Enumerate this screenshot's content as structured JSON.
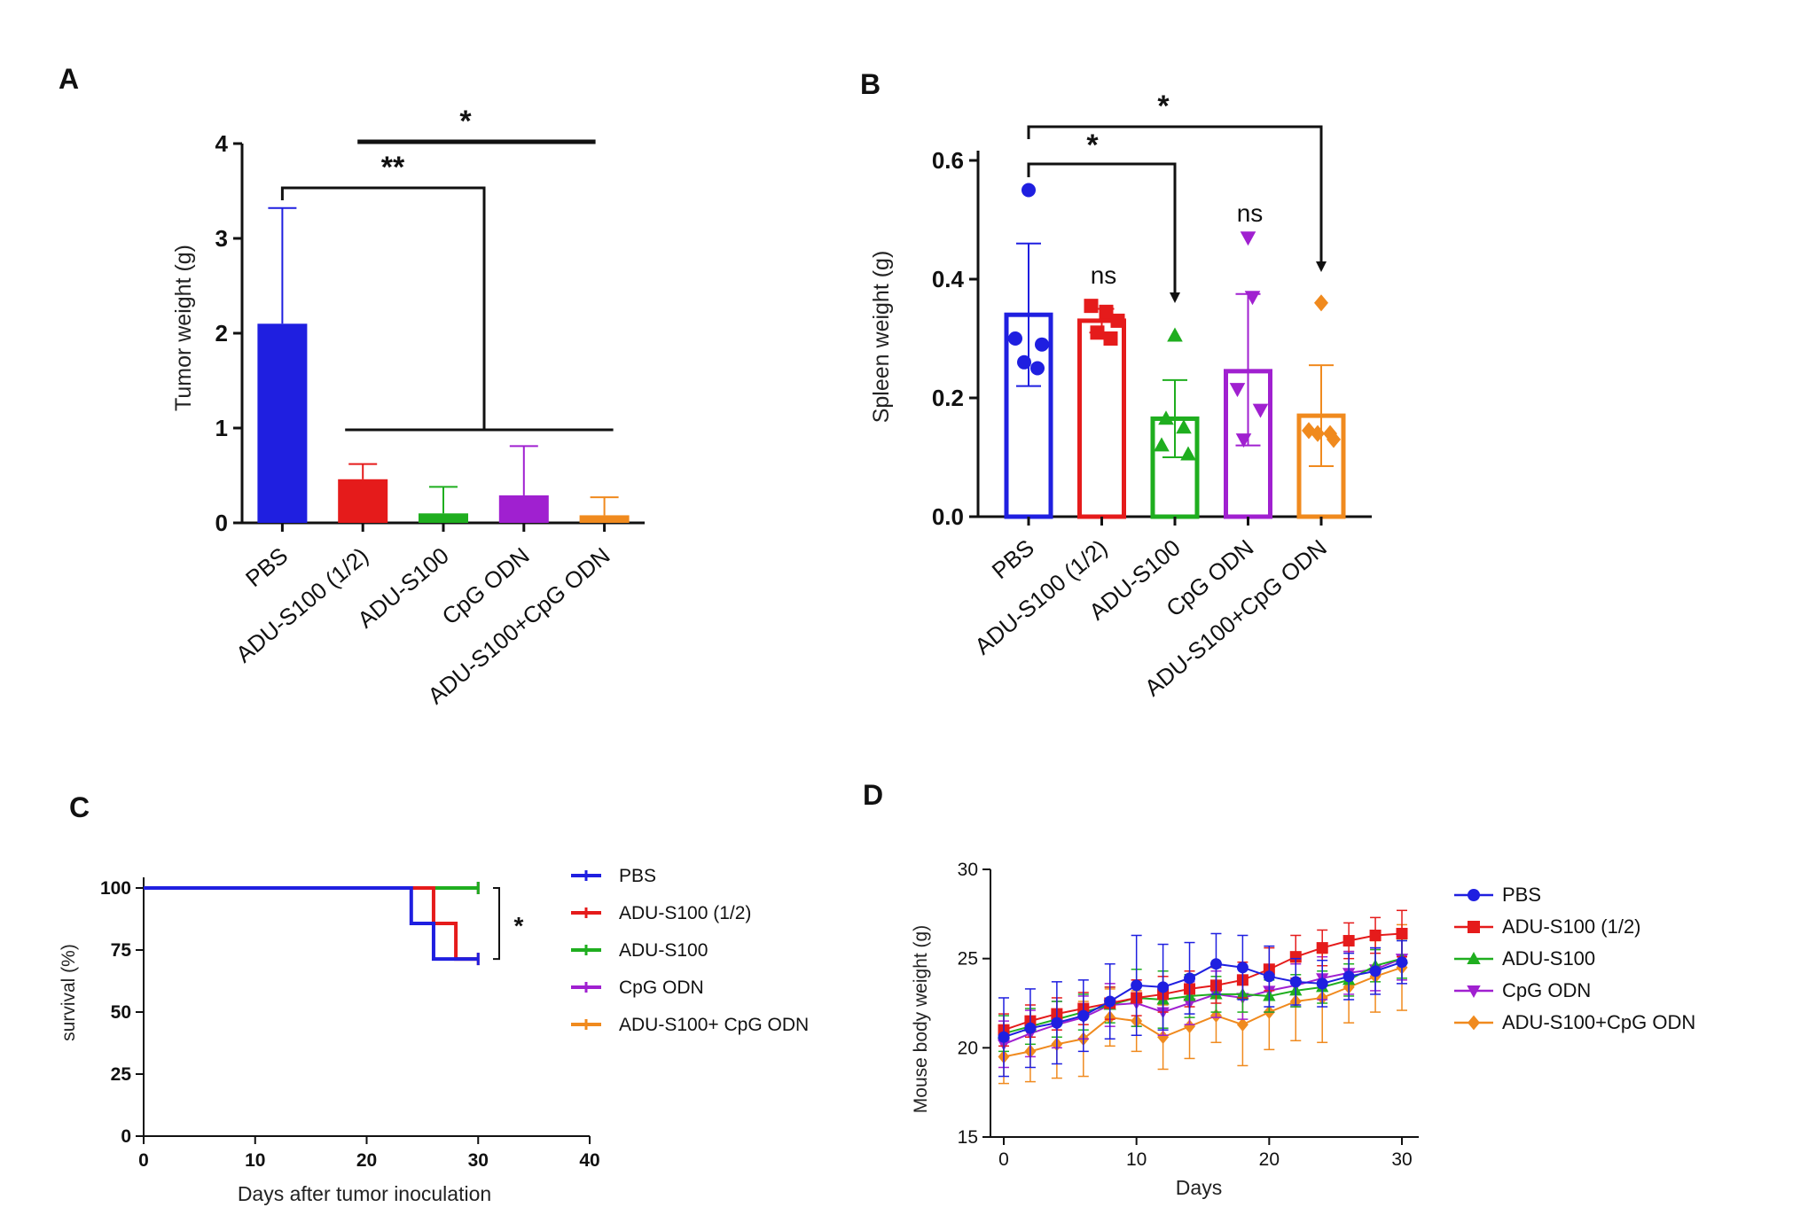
{
  "colors": {
    "PBS": "#1f1fe0",
    "ADU-S100 (1/2)": "#e51b1b",
    "ADU-S100": "#1fae1f",
    "CpG ODN": "#a020d0",
    "ADU-S100+CpG ODN": "#f08a1e"
  },
  "chart_data": [
    {
      "panel": "A",
      "type": "bar",
      "ylabel": "Tumor weight (g)",
      "ylim": [
        0,
        4
      ],
      "yticks": [
        "0",
        "1",
        "2",
        "3",
        "4"
      ],
      "categories": [
        "PBS",
        "ADU-S100 (1/2)",
        "ADU-S100",
        "CpG ODN",
        "ADU-S100+CpG ODN"
      ],
      "values": [
        2.1,
        0.46,
        0.1,
        0.29,
        0.08
      ],
      "error_upper": [
        3.32,
        0.62,
        0.38,
        0.81,
        0.27
      ],
      "annotations": [
        {
          "label": "*",
          "from": "ADU-S100 (1/2)",
          "to": "ADU-S100+CpG ODN"
        },
        {
          "label": "**",
          "from": "PBS",
          "to": "ADU-S100 (1/2)–ADU-S100+CpG ODN"
        }
      ]
    },
    {
      "panel": "B",
      "type": "bar",
      "ylabel": "Spleen weight (g)",
      "ylim": [
        0,
        0.6
      ],
      "yticks": [
        "0.0",
        "0.2",
        "0.4",
        "0.6"
      ],
      "categories": [
        "PBS",
        "ADU-S100 (1/2)",
        "ADU-S100",
        "CpG ODN",
        "ADU-S100+CpG ODN"
      ],
      "values": [
        0.34,
        0.33,
        0.165,
        0.245,
        0.17
      ],
      "error_upper": [
        0.46,
        0.35,
        0.23,
        0.375,
        0.255
      ],
      "error_lower": [
        0.22,
        0.31,
        0.1,
        0.12,
        0.085
      ],
      "points": [
        [
          0.55,
          0.3,
          0.29,
          0.26,
          0.25
        ],
        [
          0.355,
          0.345,
          0.33,
          0.31,
          0.3
        ],
        [
          0.305,
          0.165,
          0.15,
          0.12,
          0.105
        ],
        [
          0.47,
          0.37,
          0.215,
          0.18,
          0.13
        ],
        [
          0.36,
          0.145,
          0.14,
          0.14,
          0.13
        ]
      ],
      "annotations": [
        {
          "label": "*",
          "from": "PBS",
          "to": "ADU-S100"
        },
        {
          "label": "*",
          "from": "PBS",
          "to": "ADU-S100+CpG ODN"
        },
        {
          "label": "ns",
          "over": "ADU-S100 (1/2)"
        },
        {
          "label": "ns",
          "over": "CpG ODN"
        }
      ]
    },
    {
      "panel": "C",
      "type": "line",
      "step": true,
      "xlabel": "Days after tumor inoculation",
      "ylabel": "survival (%)",
      "xlim": [
        0,
        40
      ],
      "ylim": [
        0,
        100
      ],
      "xticks": [
        "0",
        "10",
        "20",
        "30",
        "40"
      ],
      "yticks": [
        "0",
        "25",
        "50",
        "75",
        "100"
      ],
      "series": [
        {
          "name": "PBS",
          "x": [
            0,
            24,
            24,
            26,
            26,
            30
          ],
          "y": [
            100,
            100,
            85.7,
            85.7,
            71.4,
            71.4
          ]
        },
        {
          "name": "ADU-S100 (1/2)",
          "x": [
            0,
            26,
            26,
            28,
            28,
            30
          ],
          "y": [
            100,
            100,
            85.7,
            85.7,
            71.4,
            71.4
          ]
        },
        {
          "name": "ADU-S100",
          "x": [
            0,
            30
          ],
          "y": [
            100,
            100
          ]
        },
        {
          "name": "CpG ODN",
          "x": [
            0,
            30
          ],
          "y": [
            100,
            100
          ]
        },
        {
          "name": "ADU-S100+ CpG ODN",
          "x": [
            0,
            30
          ],
          "y": [
            100,
            100
          ]
        }
      ],
      "annotations": [
        {
          "label": "*"
        }
      ]
    },
    {
      "panel": "D",
      "type": "line",
      "xlabel": "Days",
      "ylabel": "Mouse body weight (g)",
      "xlim": [
        0,
        30
      ],
      "ylim": [
        15,
        30
      ],
      "xticks": [
        "0",
        "10",
        "20",
        "30"
      ],
      "yticks": [
        "15",
        "20",
        "25",
        "30"
      ],
      "x": [
        0,
        2,
        4,
        6,
        8,
        10,
        12,
        14,
        16,
        18,
        20,
        22,
        24,
        26,
        28,
        30
      ],
      "series": [
        {
          "name": "PBS",
          "values": [
            20.6,
            21.1,
            21.4,
            21.8,
            22.6,
            23.5,
            23.4,
            23.9,
            24.7,
            24.5,
            24.0,
            23.7,
            23.6,
            24.0,
            24.3,
            24.8
          ],
          "error": [
            2.2,
            2.2,
            2.3,
            2.0,
            2.1,
            2.8,
            2.4,
            2.0,
            1.7,
            1.8,
            1.7,
            1.3,
            1.3,
            1.3,
            1.3,
            1.2
          ]
        },
        {
          "name": "ADU-S100 (1/2)",
          "values": [
            21.0,
            21.5,
            21.9,
            22.2,
            22.5,
            22.8,
            23.0,
            23.3,
            23.5,
            23.8,
            24.4,
            25.1,
            25.6,
            26.0,
            26.3,
            26.4
          ],
          "error": [
            0.9,
            0.9,
            0.9,
            0.9,
            0.9,
            1.0,
            1.0,
            1.0,
            1.0,
            1.0,
            1.2,
            1.2,
            1.0,
            1.0,
            1.0,
            1.3
          ]
        },
        {
          "name": "ADU-S100",
          "values": [
            20.8,
            21.2,
            21.6,
            22.0,
            22.4,
            22.8,
            22.7,
            22.9,
            23.0,
            23.0,
            22.9,
            23.2,
            23.4,
            23.8,
            24.6,
            25.0
          ],
          "error": [
            1.0,
            1.0,
            1.0,
            1.0,
            1.0,
            1.6,
            1.6,
            1.2,
            1.0,
            1.0,
            0.9,
            0.9,
            0.9,
            0.9,
            0.9,
            1.1
          ]
        },
        {
          "name": "CpG ODN",
          "values": [
            20.2,
            20.8,
            21.3,
            21.7,
            22.4,
            22.5,
            22.0,
            22.5,
            23.0,
            22.8,
            23.2,
            23.5,
            23.9,
            24.2,
            24.4,
            25.0
          ],
          "error": [
            1.3,
            1.3,
            1.3,
            1.2,
            1.2,
            1.3,
            1.3,
            1.2,
            1.3,
            1.2,
            1.2,
            1.2,
            1.2,
            1.2,
            1.2,
            1.2
          ]
        },
        {
          "name": "ADU-S100+CpG ODN",
          "values": [
            19.5,
            19.8,
            20.2,
            20.5,
            21.7,
            21.5,
            20.6,
            21.2,
            21.8,
            21.3,
            22.0,
            22.6,
            22.8,
            23.4,
            24.0,
            24.5
          ],
          "error": [
            1.5,
            1.7,
            1.9,
            2.1,
            1.6,
            1.7,
            1.8,
            1.8,
            1.5,
            2.3,
            2.1,
            2.2,
            2.5,
            2.0,
            2.0,
            2.4
          ]
        }
      ]
    }
  ],
  "legends": {
    "C": [
      "PBS",
      "ADU-S100 (1/2)",
      "ADU-S100",
      "CpG ODN",
      "ADU-S100+ CpG ODN"
    ],
    "D": [
      "PBS",
      "ADU-S100 (1/2)",
      "ADU-S100",
      "CpG ODN",
      "ADU-S100+CpG ODN"
    ]
  },
  "panels": {
    "A": "A",
    "B": "B",
    "C": "C",
    "D": "D"
  },
  "signif": {
    "star": "*",
    "double_star": "**",
    "ns": "ns"
  }
}
